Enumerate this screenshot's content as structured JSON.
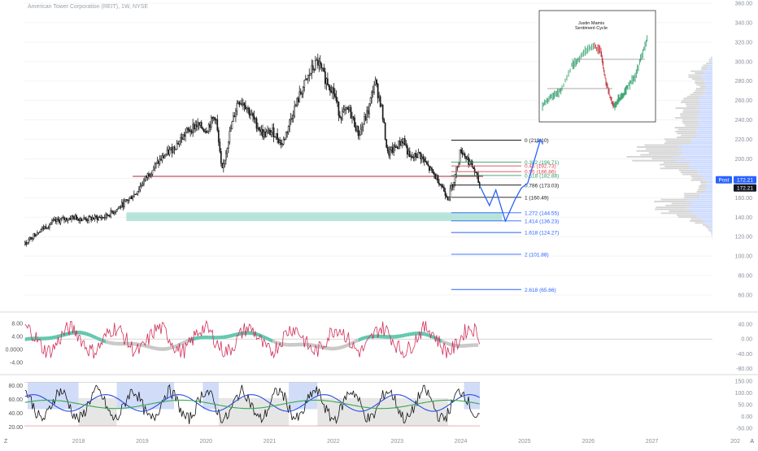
{
  "header": {
    "title": "American Tower Corporation (REIT), 1W, NYSE"
  },
  "colors": {
    "candle": "#1a1a1a",
    "support_line": "#b0203a",
    "zone": "#9fdcd0",
    "fib_blue": "#2962ff",
    "fib_red": "#e04050",
    "fib_green": "#2e9e6a",
    "price_tag": "#2962ff",
    "volume_profile_blue": "#c9d8ff",
    "volume_profile_gray": "#d4d4d4",
    "osc_red": "#d0305a",
    "osc_teal": "#5fc7ad",
    "osc_gray": "#c8c8c8",
    "bb_blue": "#2a4ee0",
    "bb_green": "#3aa850",
    "bg_blue": "#c9d6f7",
    "bg_gray": "#e2e2e2"
  },
  "chart_data": [
    {
      "type": "candlestick",
      "title": "American Tower Corporation (REIT), 1W, NYSE",
      "x_ticks": [
        "2018",
        "2019",
        "2020",
        "2021",
        "2022",
        "2023",
        "2024",
        "2025",
        "2026",
        "2027",
        "202"
      ],
      "y_ticks": [
        60,
        80,
        100,
        120,
        140,
        160,
        180,
        200,
        220,
        240,
        260,
        280,
        300,
        320,
        340,
        360
      ],
      "ylim": [
        50,
        360
      ],
      "xlim": [
        2017.15,
        2027.95
      ],
      "price_path": [
        [
          2017.15,
          112
        ],
        [
          2017.35,
          125
        ],
        [
          2017.6,
          135
        ],
        [
          2017.9,
          140
        ],
        [
          2018.1,
          138
        ],
        [
          2018.4,
          140
        ],
        [
          2018.6,
          148
        ],
        [
          2018.9,
          165
        ],
        [
          2019.1,
          185
        ],
        [
          2019.3,
          200
        ],
        [
          2019.5,
          212
        ],
        [
          2019.7,
          228
        ],
        [
          2019.85,
          235
        ],
        [
          2020.0,
          230
        ],
        [
          2020.15,
          245
        ],
        [
          2020.25,
          185
        ],
        [
          2020.35,
          220
        ],
        [
          2020.5,
          260
        ],
        [
          2020.6,
          258
        ],
        [
          2020.75,
          240
        ],
        [
          2020.9,
          225
        ],
        [
          2021.05,
          228
        ],
        [
          2021.2,
          215
        ],
        [
          2021.35,
          245
        ],
        [
          2021.5,
          270
        ],
        [
          2021.65,
          290
        ],
        [
          2021.75,
          300
        ],
        [
          2021.85,
          285
        ],
        [
          2022.0,
          270
        ],
        [
          2022.1,
          245
        ],
        [
          2022.25,
          250
        ],
        [
          2022.4,
          225
        ],
        [
          2022.55,
          250
        ],
        [
          2022.65,
          280
        ],
        [
          2022.75,
          255
        ],
        [
          2022.85,
          205
        ],
        [
          2022.95,
          210
        ],
        [
          2023.1,
          220
        ],
        [
          2023.2,
          200
        ],
        [
          2023.35,
          205
        ],
        [
          2023.5,
          190
        ],
        [
          2023.65,
          178
        ],
        [
          2023.8,
          160
        ],
        [
          2023.9,
          180
        ],
        [
          2024.0,
          210
        ],
        [
          2024.1,
          200
        ],
        [
          2024.2,
          190
        ],
        [
          2024.3,
          172
        ]
      ],
      "current_price": {
        "label": "Post",
        "value": "172.21",
        "value2": "172.21"
      },
      "support_level": 182,
      "demand_zone": [
        136,
        145
      ],
      "fibonacci": [
        {
          "ratio": "0",
          "label": "0 (219.10)",
          "value": 219.1,
          "color": "#1a1a1a"
        },
        {
          "ratio": "0.382",
          "label": "0.382 (196.71)",
          "value": 196.71,
          "color": "#2e9e6a"
        },
        {
          "ratio": "0.45",
          "label": "0.45 (192.73)",
          "value": 192.73,
          "color": "#e04050"
        },
        {
          "ratio": "0.55",
          "label": "0.55 (186.86)",
          "value": 186.86,
          "color": "#e04050"
        },
        {
          "ratio": "0.618",
          "label": "0.618 (182.88)",
          "value": 182.88,
          "color": "#2e9e6a"
        },
        {
          "ratio": "0.786",
          "label": "0.786 (173.03)",
          "value": 173.03,
          "color": "#1a1a1a"
        },
        {
          "ratio": "1",
          "label": "1 (160.49)",
          "value": 160.49,
          "color": "#1a1a1a"
        },
        {
          "ratio": "1.272",
          "label": "1.272 (144.55)",
          "value": 144.55,
          "color": "#2962ff"
        },
        {
          "ratio": "1.414",
          "label": "1.414 (136.23)",
          "value": 136.23,
          "color": "#2962ff"
        },
        {
          "ratio": "1.618",
          "label": "1.618 (124.27)",
          "value": 124.27,
          "color": "#2962ff"
        },
        {
          "ratio": "2",
          "label": "2 (101.88)",
          "value": 101.88,
          "color": "#2962ff"
        },
        {
          "ratio": "2.618",
          "label": "2.618 (65.66)",
          "value": 65.66,
          "color": "#2962ff"
        }
      ],
      "projection_path": [
        [
          2024.3,
          172
        ],
        [
          2024.45,
          152
        ],
        [
          2024.55,
          168
        ],
        [
          2024.7,
          136
        ],
        [
          2024.85,
          158
        ],
        [
          2024.95,
          170
        ],
        [
          2025.05,
          175
        ],
        [
          2025.25,
          220
        ]
      ],
      "inset": {
        "title_line1": "Justin Mamis",
        "title_line2": "Sentiment Cycle"
      }
    },
    {
      "type": "line",
      "name": "oscillator",
      "y_ticks_left": [
        "8.00",
        "4.00",
        "0.0000",
        "-4.00"
      ],
      "y_ticks_right": [
        "40.00",
        "0.00",
        "-40.00",
        "-80.00"
      ]
    },
    {
      "type": "line",
      "name": "rsi",
      "y_ticks_left": [
        "80.00",
        "60.00",
        "40.00",
        "20.00"
      ],
      "y_ticks_right": [
        "150.00",
        "100.00",
        "50.00",
        "0.00",
        "-50.00"
      ]
    }
  ],
  "footer": {
    "left_mark": "Z",
    "right_mark": "A"
  }
}
